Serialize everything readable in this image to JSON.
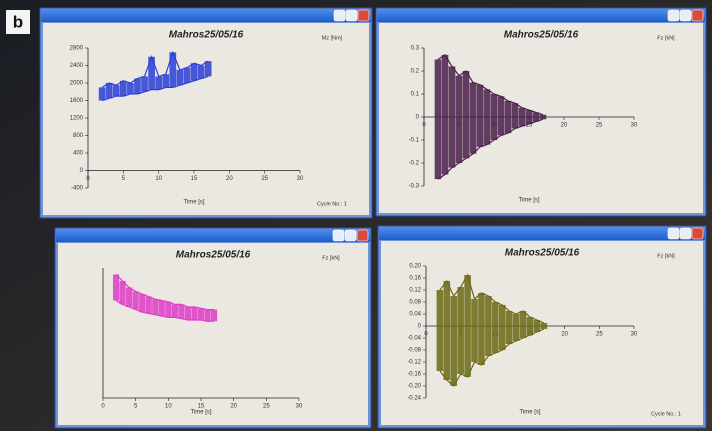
{
  "label": "b",
  "windows": [
    {
      "heading": "Mahros25/05/16",
      "unit": "Mz [Nm]",
      "cycle": "Cycle No.: 1",
      "chart": {
        "type": "range",
        "xlabel": "Time [s]",
        "x": [
          2,
          3,
          4,
          5,
          6,
          7,
          8,
          9,
          10,
          11,
          12,
          13,
          14,
          15,
          16,
          17
        ],
        "series": [
          {
            "color": "#2a3fd6",
            "values": [
              1900,
              2000,
              1950,
              2050,
              2000,
              2100,
              2150,
              2600,
              2150,
              2200,
              2700,
              2300,
              2350,
              2450,
              2400,
              2500
            ]
          },
          {
            "color": "#2a3fd6",
            "values": [
              1600,
              1650,
              1700,
              1700,
              1750,
              1750,
              1800,
              1850,
              1850,
              1900,
              1900,
              1950,
              2000,
              2050,
              2100,
              2150
            ]
          }
        ],
        "xlim": [
          0,
          30
        ],
        "xticks": [
          0,
          5,
          10,
          15,
          20,
          25,
          30
        ],
        "ylim": [
          -400,
          2800
        ],
        "yticks": [
          -400,
          0,
          400,
          800,
          1200,
          1600,
          2000,
          2400,
          2800
        ]
      }
    },
    {
      "heading": "Mahros25/05/16",
      "unit": "Fz [kN]",
      "chart": {
        "type": "range",
        "xlabel": "Time [s]",
        "x": [
          2,
          3,
          4,
          5,
          6,
          7,
          8,
          9,
          10,
          11,
          12,
          13,
          14,
          15,
          16,
          17
        ],
        "series": [
          {
            "color": "#4a1f4a",
            "values": [
              0.25,
              0.27,
              0.22,
              0.18,
              0.2,
              0.15,
              0.14,
              0.12,
              0.1,
              0.09,
              0.07,
              0.06,
              0.04,
              0.03,
              0.02,
              0.01
            ]
          },
          {
            "color": "#4a1f4a",
            "values": [
              -0.27,
              -0.25,
              -0.22,
              -0.2,
              -0.18,
              -0.16,
              -0.13,
              -0.12,
              -0.1,
              -0.08,
              -0.07,
              -0.05,
              -0.04,
              -0.03,
              -0.02,
              -0.01
            ]
          }
        ],
        "xlim": [
          0,
          30
        ],
        "xticks": [
          0,
          5,
          10,
          15,
          20,
          25,
          30
        ],
        "ylim": [
          -0.3,
          0.3
        ],
        "yticks": [
          -0.3,
          -0.2,
          -0.1,
          0,
          0.1,
          0.2,
          0.3
        ]
      }
    },
    {
      "heading": "Mahros25/05/16",
      "unit": "Fz [kN]",
      "chart": {
        "type": "range",
        "xlabel": "Time [s]",
        "x": [
          2,
          3,
          4,
          5,
          6,
          7,
          8,
          9,
          10,
          11,
          12,
          13,
          14,
          15,
          16,
          17
        ],
        "series": [
          {
            "color": "#e03cc8",
            "values": [
              0.95,
              0.9,
              0.85,
              0.82,
              0.8,
              0.78,
              0.76,
              0.75,
              0.74,
              0.72,
              0.72,
              0.7,
              0.7,
              0.69,
              0.68,
              0.68
            ]
          },
          {
            "color": "#e03cc8",
            "values": [
              0.75,
              0.72,
              0.7,
              0.68,
              0.66,
              0.65,
              0.64,
              0.63,
              0.62,
              0.62,
              0.61,
              0.6,
              0.6,
              0.6,
              0.59,
              0.59
            ]
          }
        ],
        "xlim": [
          0,
          30
        ],
        "xticks": [
          0,
          5,
          10,
          15,
          20,
          25,
          30
        ],
        "ylim": [
          0,
          1
        ]
      }
    },
    {
      "heading": "Mahros25/05/16",
      "unit": "Fz [kN]",
      "cycle": "Cycle No.: 1",
      "chart": {
        "type": "range",
        "xlabel": "Time [s]",
        "x": [
          2,
          3,
          4,
          5,
          6,
          7,
          8,
          9,
          10,
          11,
          12,
          13,
          14,
          15,
          16,
          17
        ],
        "series": [
          {
            "color": "#6b6a14",
            "values": [
              0.12,
              0.15,
              0.1,
              0.13,
              0.17,
              0.09,
              0.11,
              0.1,
              0.08,
              0.07,
              0.05,
              0.04,
              0.05,
              0.03,
              0.02,
              0.01
            ]
          },
          {
            "color": "#6b6a14",
            "values": [
              -0.15,
              -0.18,
              -0.2,
              -0.16,
              -0.17,
              -0.12,
              -0.13,
              -0.1,
              -0.09,
              -0.08,
              -0.06,
              -0.05,
              -0.04,
              -0.03,
              -0.02,
              -0.01
            ]
          }
        ],
        "xlim": [
          0,
          30
        ],
        "xticks": [
          0,
          5,
          10,
          15,
          20,
          25,
          30
        ],
        "ylim": [
          -0.24,
          0.2
        ],
        "yticks": [
          {
            "value": -0.24,
            "label": "-0.24"
          },
          {
            "value": -0.2,
            "label": "-0.20"
          },
          -0.16,
          -0.12,
          -0.08,
          -0.04,
          0,
          0.04,
          0.08,
          0.12,
          0.16,
          {
            "value": 0.2,
            "label": "0.20"
          }
        ]
      }
    }
  ]
}
